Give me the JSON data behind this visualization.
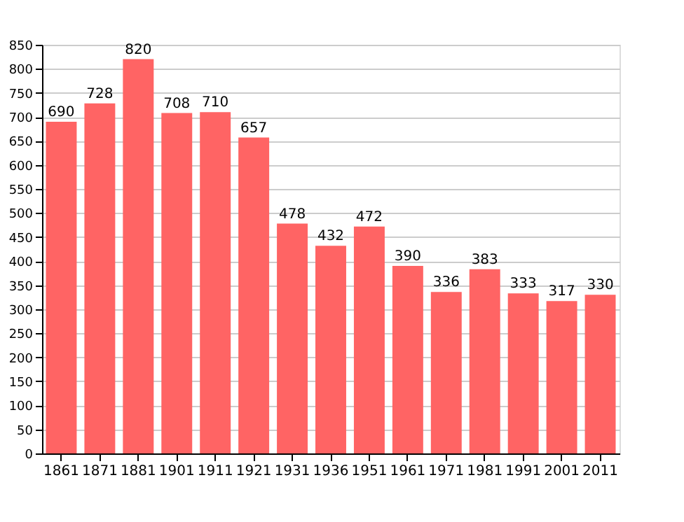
{
  "chart_data": {
    "type": "bar",
    "categories": [
      "1861",
      "1871",
      "1881",
      "1901",
      "1911",
      "1921",
      "1931",
      "1936",
      "1951",
      "1961",
      "1971",
      "1981",
      "1991",
      "2001",
      "2011"
    ],
    "values": [
      690,
      728,
      820,
      708,
      710,
      657,
      478,
      432,
      472,
      390,
      336,
      383,
      333,
      317,
      330
    ],
    "color": "#ff6464",
    "ylim": [
      0,
      850
    ],
    "yticks": [
      0,
      50,
      100,
      150,
      200,
      250,
      300,
      350,
      400,
      450,
      500,
      550,
      600,
      650,
      700,
      750,
      800,
      850
    ],
    "grid": "y",
    "data_labels": true
  }
}
